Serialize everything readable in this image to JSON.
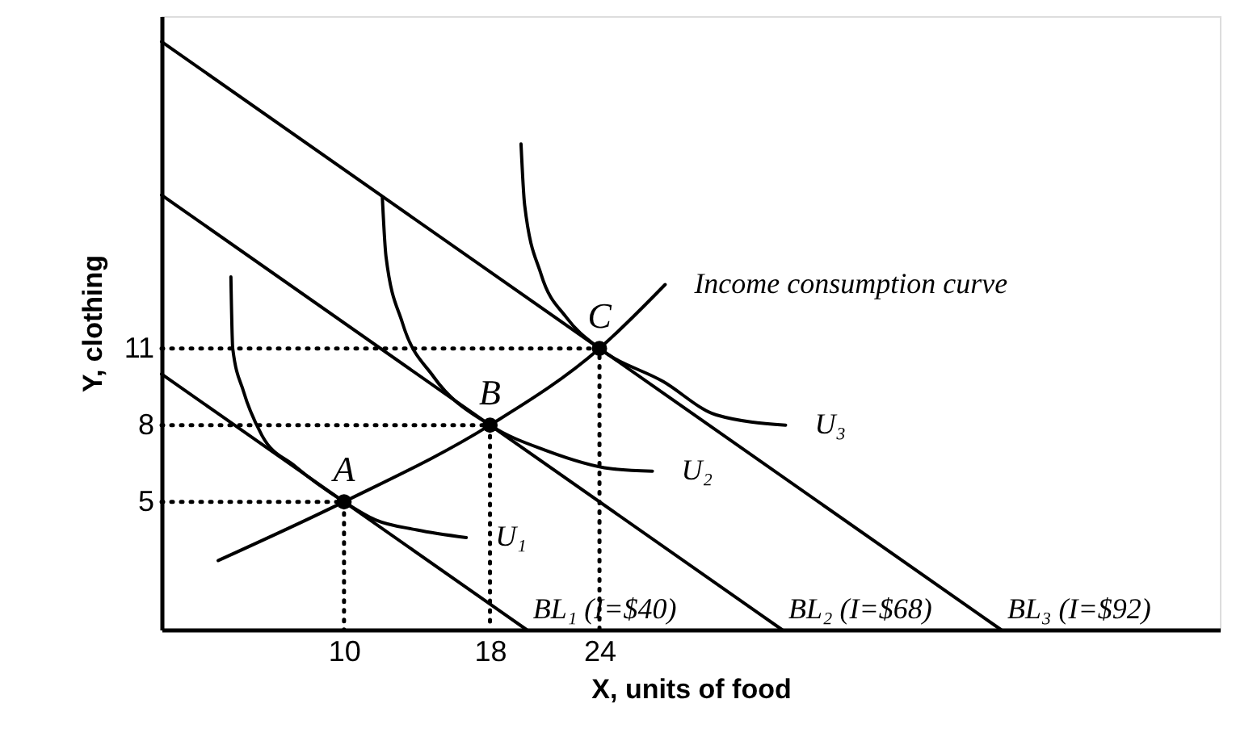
{
  "chart_data": {
    "type": "line",
    "xlabel": "X, units of food",
    "ylabel": "Y, clothing",
    "xlim": [
      0,
      58
    ],
    "ylim": [
      0,
      24
    ],
    "xticks": [
      10,
      18,
      24
    ],
    "yticks": [
      5,
      8,
      11
    ],
    "grid": false,
    "series": [
      {
        "name": "BL₁ (I=$40)",
        "color": "#000000",
        "x": [
          0,
          20
        ],
        "values": [
          10,
          0
        ]
      },
      {
        "name": "BL₂ (I=$68)",
        "color": "#000000",
        "x": [
          0,
          34
        ],
        "values": [
          17,
          0
        ]
      },
      {
        "name": "BL₃ (I=$92)",
        "color": "#000000",
        "x": [
          0,
          46
        ],
        "values": [
          23,
          0
        ]
      },
      {
        "name": "U₁",
        "color": "#000000",
        "x": [
          3.8,
          3.9,
          4.5,
          5.5,
          7.3,
          10,
          11.7,
          14,
          16.7
        ],
        "values": [
          13.8,
          11,
          9.3,
          7.6,
          6.4,
          5,
          4.3,
          3.9,
          3.6
        ]
      },
      {
        "name": "U₂",
        "color": "#000000",
        "x": [
          12.1,
          12.3,
          13.2,
          14.9,
          18,
          21.1,
          24.6,
          26.9
        ],
        "values": [
          16.9,
          14.6,
          12,
          9.9,
          8,
          7,
          6.3,
          6.2
        ]
      },
      {
        "name": "U₃",
        "color": "#000000",
        "x": [
          19.7,
          19.9,
          20.8,
          22.2,
          24,
          27.5,
          30.4,
          34.2
        ],
        "values": [
          19,
          16.6,
          13.9,
          12.2,
          11,
          9.7,
          8.4,
          8
        ]
      },
      {
        "name": "Income consumption curve",
        "color": "#000000",
        "x": [
          3.1,
          10,
          18,
          24,
          27.6
        ],
        "values": [
          2.7,
          5,
          8,
          11,
          13.5
        ]
      },
      {
        "color": "#000000",
        "line_style": "dotted",
        "x": [
          0,
          10,
          10
        ],
        "values": [
          5,
          5,
          0
        ]
      },
      {
        "color": "#000000",
        "line_style": "dotted",
        "x": [
          0,
          18,
          18
        ],
        "values": [
          8,
          8,
          0
        ]
      },
      {
        "color": "#000000",
        "line_style": "dotted",
        "x": [
          0,
          24,
          24
        ],
        "values": [
          11,
          11,
          0
        ]
      },
      {
        "type": "scatter",
        "marker": "circle",
        "color": "#000000",
        "x": [
          10,
          18,
          24
        ],
        "values": [
          5,
          8,
          11
        ]
      }
    ],
    "annotations": [
      {
        "text": "A",
        "x": 10,
        "y": 5
      },
      {
        "text": "B",
        "x": 18,
        "y": 8
      },
      {
        "text": "C",
        "x": 24,
        "y": 11
      }
    ]
  }
}
